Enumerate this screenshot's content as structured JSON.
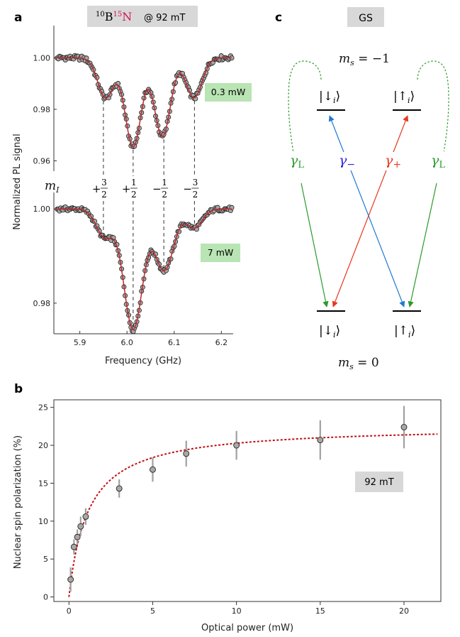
{
  "panels": {
    "a_label": "a",
    "b_label": "b",
    "c_label": "c"
  },
  "panel_a": {
    "title_prefix_sup1": "10",
    "title_B": "B",
    "title_prefix_sup2": "15",
    "title_N": "N",
    "title_field": "@ 92 mT",
    "ylabel": "Normalized PL signal",
    "xlabel": "Frequency (GHz)",
    "top_power": "0.3 mW",
    "bottom_power": "7 mW",
    "mI_label": "m",
    "mI_sub": "I",
    "mI_values": [
      {
        "sign": "+",
        "num": "3",
        "den": "2",
        "x": 5.95
      },
      {
        "sign": "+",
        "num": "1",
        "den": "2",
        "x": 6.013
      },
      {
        "sign": "−",
        "num": "1",
        "den": "2",
        "x": 6.078
      },
      {
        "sign": "−",
        "num": "3",
        "den": "2",
        "x": 6.143
      }
    ],
    "top_yticks": [
      "1.00",
      "0.98",
      "0.96"
    ],
    "bottom_yticks": [
      "1.00",
      "0.98"
    ],
    "xticks": [
      "5.9",
      "6.0",
      "6.1",
      "6.2"
    ],
    "colors": {
      "fit": "#c0282d",
      "marker": "#a8a8a8",
      "badge": "#b9e4b3",
      "title_bg": "#d8d8d8",
      "N_color": "#d3175a"
    }
  },
  "panel_c": {
    "badge": "GS",
    "ms_top": "m",
    "ms_top_sub": "s",
    "ms_top_val": " = −1",
    "ms_bottom": "m",
    "ms_bottom_sub": "s",
    "ms_bottom_val": " = 0",
    "state_down": "|↓",
    "state_up": "|↑",
    "state_sub": "i",
    "state_close": "⟩",
    "gamma": "γ",
    "gamma_L_sub": "L",
    "gamma_minus_sub": "−",
    "gamma_plus_sub": "+",
    "colors": {
      "green": "#2a9a2a",
      "blue": "#1f78d4",
      "red": "#e8361e",
      "gamma_minus": "#2a24d6"
    }
  },
  "panel_b": {
    "ylabel": "Nuclear spin polarization (%)",
    "xlabel": "Optical power (mW)",
    "field_badge": "92 mT",
    "xticks": [
      "0",
      "5",
      "10",
      "15",
      "20"
    ],
    "yticks": [
      "0",
      "5",
      "10",
      "15",
      "20",
      "25"
    ]
  },
  "chart_data": [
    {
      "type": "line",
      "panel": "a-top",
      "title": "10B15N @ 92 mT",
      "xlabel": "Frequency (GHz)",
      "ylabel": "Normalized PL signal",
      "xlim": [
        5.845,
        6.225
      ],
      "ylim": [
        0.956,
        1.0125
      ],
      "annotation": "0.3 mW",
      "fit": {
        "baseline": 1.0,
        "dips": [
          {
            "center": 5.955,
            "depth": 0.0155,
            "width": 0.017
          },
          {
            "center": 6.013,
            "depth": 0.0345,
            "width": 0.017
          },
          {
            "center": 6.075,
            "depth": 0.0305,
            "width": 0.017
          },
          {
            "center": 6.142,
            "depth": 0.0155,
            "width": 0.017
          }
        ]
      }
    },
    {
      "type": "line",
      "panel": "a-bottom",
      "xlabel": "Frequency (GHz)",
      "xlim": [
        5.845,
        6.225
      ],
      "ylim": [
        0.9735,
        1.0035
      ],
      "annotation": "7 mW",
      "fit": {
        "baseline": 1.0,
        "dips": [
          {
            "center": 5.953,
            "depth": 0.006,
            "width": 0.018
          },
          {
            "center": 6.013,
            "depth": 0.0255,
            "width": 0.02
          },
          {
            "center": 6.079,
            "depth": 0.013,
            "width": 0.02
          },
          {
            "center": 6.143,
            "depth": 0.004,
            "width": 0.017
          }
        ]
      }
    },
    {
      "type": "scatter",
      "panel": "b",
      "xlabel": "Optical power (mW)",
      "ylabel": "Nuclear spin polarization (%)",
      "xlim": [
        -0.9,
        22.2
      ],
      "ylim": [
        -0.6,
        26
      ],
      "points": [
        {
          "x": 0.1,
          "y": 2.3,
          "err": 1.6
        },
        {
          "x": 0.3,
          "y": 6.6,
          "err": 1.0
        },
        {
          "x": 0.5,
          "y": 7.9,
          "err": 1.0
        },
        {
          "x": 0.7,
          "y": 9.3,
          "err": 1.3
        },
        {
          "x": 1.0,
          "y": 10.6,
          "err": 1.1
        },
        {
          "x": 3.0,
          "y": 14.3,
          "err": 1.2
        },
        {
          "x": 5.0,
          "y": 16.8,
          "err": 1.6
        },
        {
          "x": 7.0,
          "y": 18.9,
          "err": 1.7
        },
        {
          "x": 10.0,
          "y": 20.0,
          "err": 1.9
        },
        {
          "x": 15.0,
          "y": 20.7,
          "err": 2.6
        },
        {
          "x": 20.0,
          "y": 22.4,
          "err": 2.8
        }
      ],
      "fit": {
        "type": "saturation",
        "Pmax": 22.6,
        "Psat": 1.15
      }
    }
  ]
}
